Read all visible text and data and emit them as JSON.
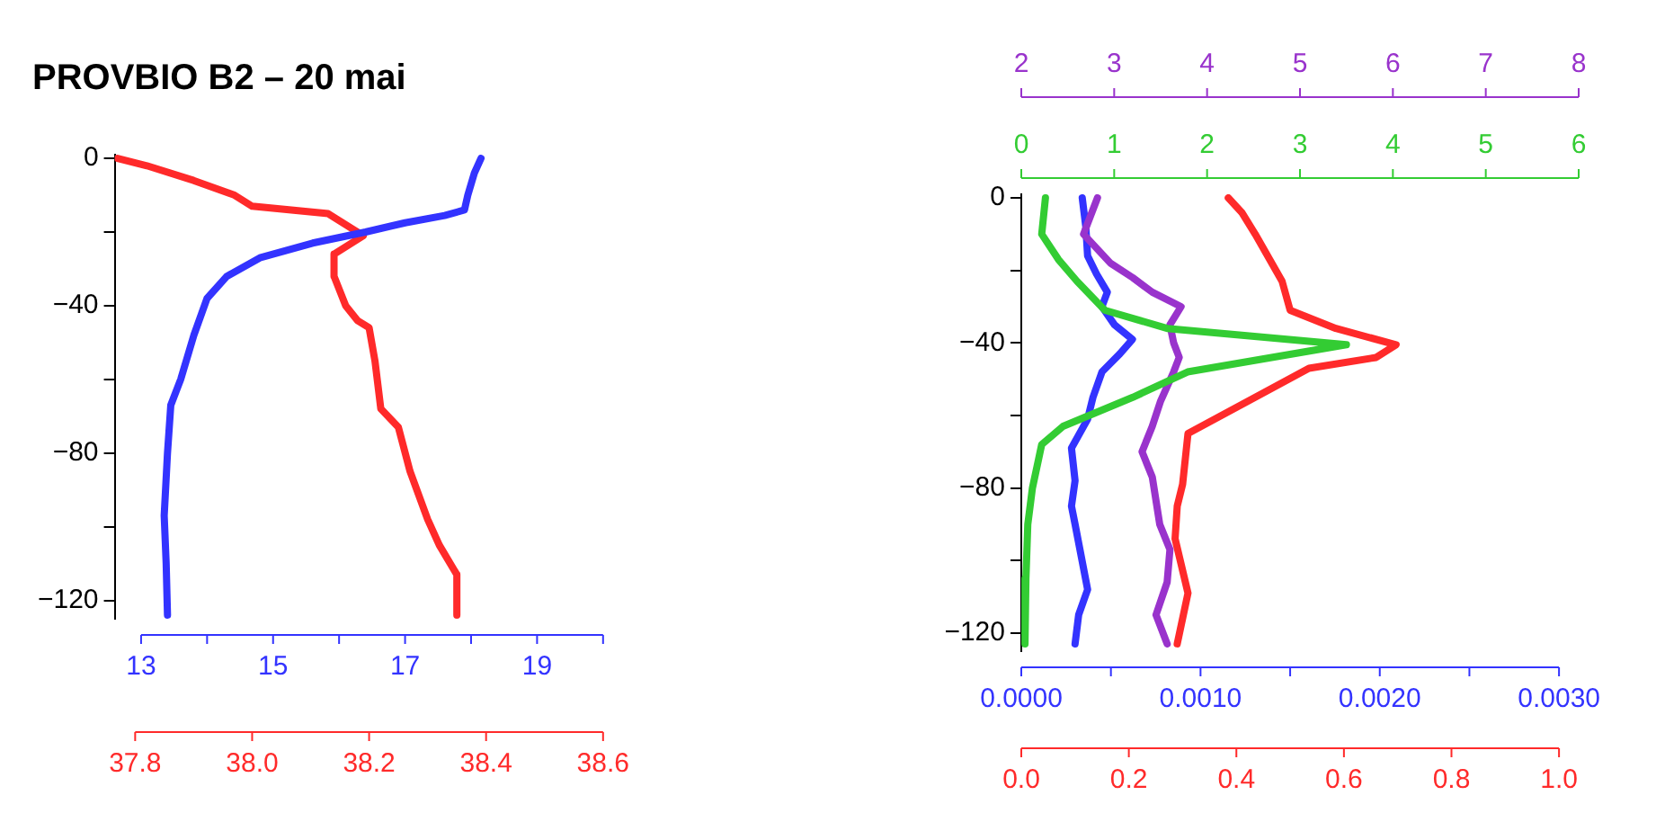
{
  "chart_data": [
    {
      "type": "line",
      "title": "PROVBIO B2 – 20 mai",
      "ylim": [
        -125,
        1
      ],
      "yticks": [
        {
          "value": -120,
          "label": "−120"
        },
        {
          "value": -100,
          "label": null
        },
        {
          "value": -80,
          "label": "−80"
        },
        {
          "value": -60,
          "label": null
        },
        {
          "value": -40,
          "label": "−40"
        },
        {
          "value": -20,
          "label": null
        },
        0
      ],
      "xlim": [
        12.6,
        20
      ],
      "xticks": [
        13,
        {
          "value": 14,
          "label": null
        },
        15,
        {
          "value": 16,
          "label": null
        },
        17,
        {
          "value": 18,
          "label": null
        },
        19,
        {
          "value": 20,
          "label": null
        }
      ],
      "x2lim": [
        37.765,
        38.6
      ],
      "x2ticks": [
        37.8,
        {
          "value": 38.0,
          "label": "38.0"
        },
        38.2,
        38.4,
        38.6
      ],
      "series": [
        {
          "color": "#3333ff",
          "x": [
            18.15,
            18.05,
            17.95,
            17.9,
            17.6,
            17.0,
            16.4,
            15.6,
            14.8,
            14.3,
            14.0,
            13.8,
            13.6,
            13.45,
            13.4,
            13.35,
            13.38,
            13.4
          ],
          "values": [
            0,
            -4,
            -10,
            -14,
            -15.5,
            -17.5,
            -20,
            -23,
            -27,
            -32,
            -38,
            -48,
            -60,
            -67,
            -80,
            -97,
            -110,
            -124
          ]
        },
        {
          "color": "#ff2a2a",
          "axis": "x2",
          "x": [
            37.77,
            37.82,
            37.9,
            37.97,
            38.0,
            38.13,
            38.19,
            38.14,
            38.14,
            38.16,
            38.18,
            38.2,
            38.21,
            38.22,
            38.25,
            38.27,
            38.3,
            38.32,
            38.35,
            38.35
          ],
          "values": [
            0,
            -2,
            -6,
            -10,
            -13,
            -15,
            -21,
            -26,
            -32,
            -40,
            -44,
            -46,
            -55,
            -68,
            -73,
            -85,
            -98,
            -105,
            -113,
            -124
          ]
        }
      ]
    },
    {
      "type": "line",
      "ylim": [
        -125,
        1
      ],
      "yticks": [
        {
          "value": -120,
          "label": "−120"
        },
        {
          "value": -100,
          "label": null
        },
        {
          "value": -80,
          "label": "−80"
        },
        {
          "value": -60,
          "label": null
        },
        {
          "value": -40,
          "label": "−40"
        },
        {
          "value": -20,
          "label": null
        },
        0
      ],
      "xlim": [
        0,
        0.003
      ],
      "xticks": [
        {
          "value": 0,
          "label": "0.0000"
        },
        {
          "value": 0.0005,
          "label": null
        },
        {
          "value": 0.001,
          "label": "0.0010"
        },
        {
          "value": 0.0015,
          "label": null
        },
        {
          "value": 0.002,
          "label": "0.0020"
        },
        {
          "value": 0.0025,
          "label": null
        },
        {
          "value": 0.003,
          "label": "0.0030"
        }
      ],
      "x2lim": [
        0,
        1
      ],
      "x2ticks": [
        {
          "value": 0,
          "label": "0.0"
        },
        0.2,
        0.4,
        0.6,
        0.8,
        {
          "value": 1,
          "label": "1.0"
        }
      ],
      "series": [
        {
          "color": "#3333ff",
          "x": [
            0.00034,
            0.00036,
            0.00037,
            0.00042,
            0.00048,
            0.00045,
            0.00052,
            0.00062,
            0.00055,
            0.00045,
            0.0004,
            0.00037,
            0.00028,
            0.0003,
            0.00028,
            0.0003,
            0.00037,
            0.00032,
            0.0003
          ],
          "values": [
            0,
            -8,
            -16,
            -21,
            -26,
            -30,
            -35,
            -39,
            -43,
            -48,
            -55,
            -61,
            -69,
            -78,
            -85,
            -90,
            -108,
            -115,
            -123
          ]
        },
        {
          "color": "#ff2a2a",
          "axis": "x2",
          "x": [
            0.385,
            0.41,
            0.435,
            0.485,
            0.5,
            0.585,
            0.697,
            0.66,
            0.535,
            0.435,
            0.31,
            0.3,
            0.29,
            0.286,
            0.31,
            0.29
          ],
          "values": [
            0,
            -4,
            -10,
            -23,
            -31,
            -36,
            -40.5,
            -44,
            -47,
            -55,
            -65,
            -79,
            -85,
            -94,
            -109,
            -123
          ]
        }
      ]
    },
    {
      "type": "line",
      "tick_labels": "x",
      "ylim": [
        -125,
        1
      ],
      "xlim": [
        0,
        6
      ],
      "xticks": [
        0,
        1,
        2,
        3,
        4,
        5,
        6
      ],
      "x2lim": [
        2,
        8
      ],
      "x2ticks": [
        2,
        3,
        4,
        5,
        6,
        7,
        8
      ],
      "series": [
        {
          "color": "#33cc33",
          "x": [
            0.26,
            0.22,
            0.4,
            0.6,
            0.9,
            1.57,
            3.5,
            1.79,
            1.2,
            0.45,
            0.22,
            0.12,
            0.07,
            0.05,
            0.04
          ],
          "values": [
            0,
            -10,
            -17,
            -23,
            -31,
            -36,
            -40.5,
            -48,
            -55,
            -63,
            -68,
            -80,
            -90,
            -105,
            -123
          ]
        },
        {
          "color": "#9933cc",
          "axis": "x2",
          "x": [
            2.82,
            2.67,
            2.96,
            3.2,
            3.41,
            3.72,
            3.6,
            3.64,
            3.7,
            3.64,
            3.5,
            3.41,
            3.3,
            3.41,
            3.49,
            3.6,
            3.57,
            3.45,
            3.57
          ],
          "values": [
            0,
            -10,
            -18,
            -22,
            -26,
            -30,
            -35,
            -40,
            -44,
            -48,
            -56,
            -63,
            -70,
            -77,
            -90,
            -97,
            -106,
            -115,
            -123
          ]
        }
      ]
    }
  ]
}
